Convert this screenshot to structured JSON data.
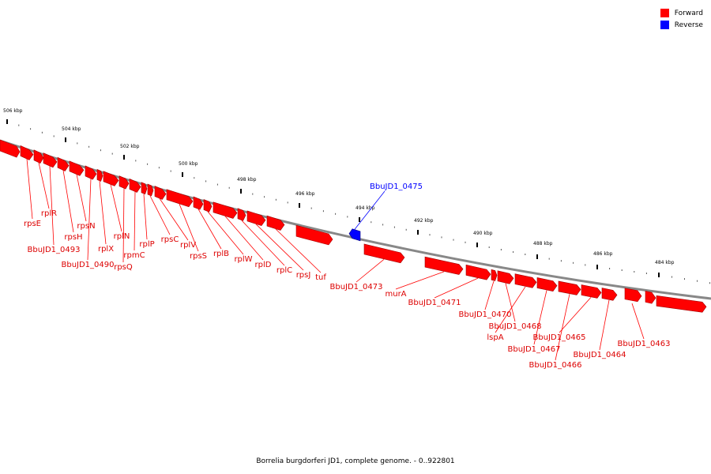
{
  "legend": {
    "forward_label": "Forward",
    "reverse_label": "Reverse",
    "forward_color": "#ff0000",
    "reverse_color": "#0000ff"
  },
  "caption": "Borrelia burgdorferi JD1, complete genome. - 0..922801",
  "ticks": [
    {
      "label": "506 kbp"
    },
    {
      "label": "504 kbp"
    },
    {
      "label": "502 kbp"
    },
    {
      "label": "500 kbp"
    },
    {
      "label": "498 kbp"
    },
    {
      "label": "496 kbp"
    },
    {
      "label": "494 kbp"
    },
    {
      "label": "492 kbp"
    },
    {
      "label": "490 kbp"
    },
    {
      "label": "488 kbp"
    },
    {
      "label": "486 kbp"
    },
    {
      "label": "484 kbp"
    }
  ],
  "genes": [
    {
      "label": "rpsE",
      "strand": "forward"
    },
    {
      "label": "rplR",
      "strand": "forward"
    },
    {
      "label": "BbuJD1_0493",
      "strand": "forward"
    },
    {
      "label": "rpsH",
      "strand": "forward"
    },
    {
      "label": "rpsN",
      "strand": "forward"
    },
    {
      "label": "BbuJD1_0490",
      "strand": "forward"
    },
    {
      "label": "rplX",
      "strand": "forward"
    },
    {
      "label": "rplN",
      "strand": "forward"
    },
    {
      "label": "rpsQ",
      "strand": "forward"
    },
    {
      "label": "rpmC",
      "strand": "forward"
    },
    {
      "label": "rplP",
      "strand": "forward"
    },
    {
      "label": "rpsC",
      "strand": "forward"
    },
    {
      "label": "rplV",
      "strand": "forward"
    },
    {
      "label": "rpsS",
      "strand": "forward"
    },
    {
      "label": "rplB",
      "strand": "forward"
    },
    {
      "label": "rplW",
      "strand": "forward"
    },
    {
      "label": "rplD",
      "strand": "forward"
    },
    {
      "label": "rplC",
      "strand": "forward"
    },
    {
      "label": "rpsJ",
      "strand": "forward"
    },
    {
      "label": "tuf",
      "strand": "forward"
    },
    {
      "label": "BbuJD1_0475",
      "strand": "reverse"
    },
    {
      "label": "BbuJD1_0473",
      "strand": "forward"
    },
    {
      "label": "murA",
      "strand": "forward"
    },
    {
      "label": "BbuJD1_0471",
      "strand": "forward"
    },
    {
      "label": "BbuJD1_0470",
      "strand": "forward"
    },
    {
      "label": "BbuJD1_0468",
      "strand": "forward"
    },
    {
      "label": "lspA",
      "strand": "forward"
    },
    {
      "label": "BbuJD1_0467",
      "strand": "forward"
    },
    {
      "label": "BbuJD1_0466",
      "strand": "forward"
    },
    {
      "label": "BbuJD1_0465",
      "strand": "forward"
    },
    {
      "label": "BbuJD1_0464",
      "strand": "forward"
    },
    {
      "label": "BbuJD1_0463",
      "strand": "forward"
    }
  ]
}
